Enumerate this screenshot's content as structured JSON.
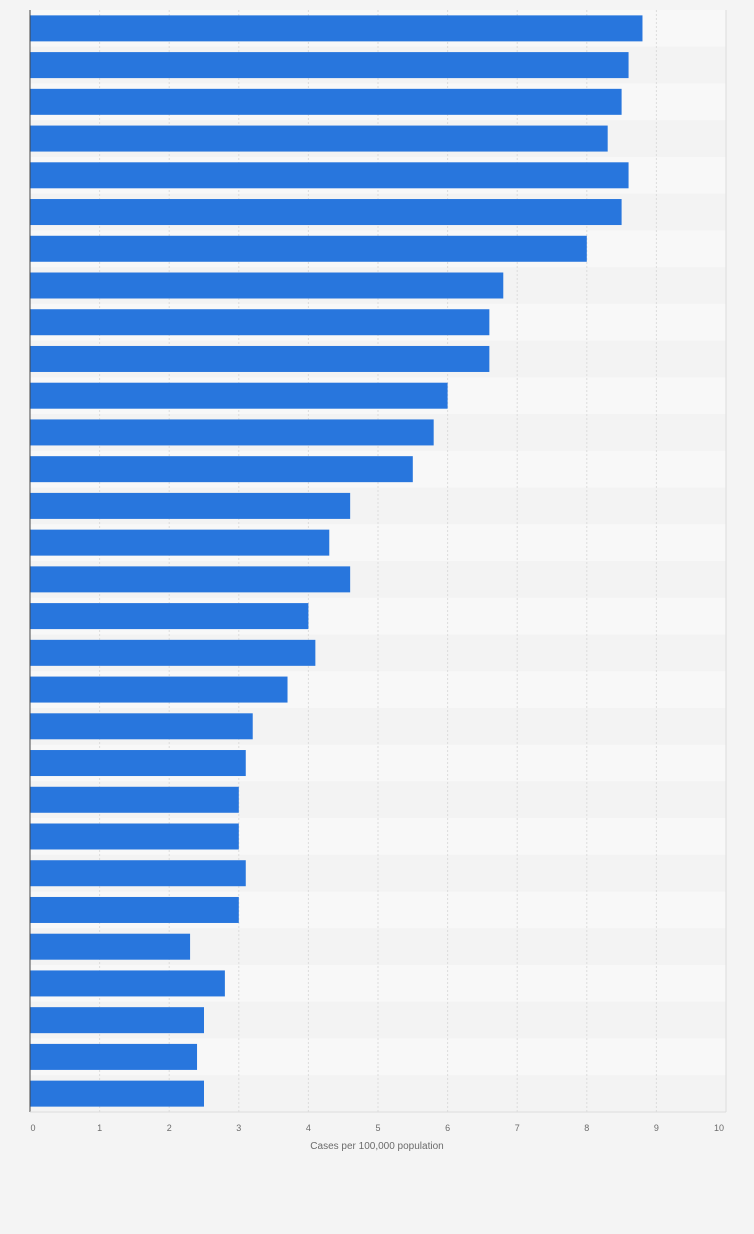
{
  "chart_data": {
    "type": "bar",
    "orientation": "horizontal",
    "title": "",
    "xlabel": "Cases per 100,000 population",
    "ylabel": "",
    "xlim": [
      0,
      10
    ],
    "x_ticks": [
      "0",
      "1",
      "2",
      "3",
      "4",
      "5",
      "6",
      "7",
      "8",
      "9",
      "10"
    ],
    "grid": true,
    "values": [
      8.8,
      8.6,
      8.5,
      8.3,
      8.6,
      8.5,
      8.0,
      6.8,
      6.6,
      6.6,
      6.0,
      5.8,
      5.5,
      4.6,
      4.3,
      4.6,
      4.0,
      4.1,
      3.7,
      3.2,
      3.1,
      3.0,
      3.0,
      3.1,
      3.0,
      2.3,
      2.8,
      2.5,
      2.4,
      2.5
    ],
    "colors": {
      "bar": "#2876dd",
      "band_light": "#f8f8f8",
      "band_dark": "#f3f3f3",
      "grid": "#dcdcdc",
      "axis": "#444444",
      "tick_text": "#6b6b6b",
      "background": "#f4f4f4"
    }
  }
}
